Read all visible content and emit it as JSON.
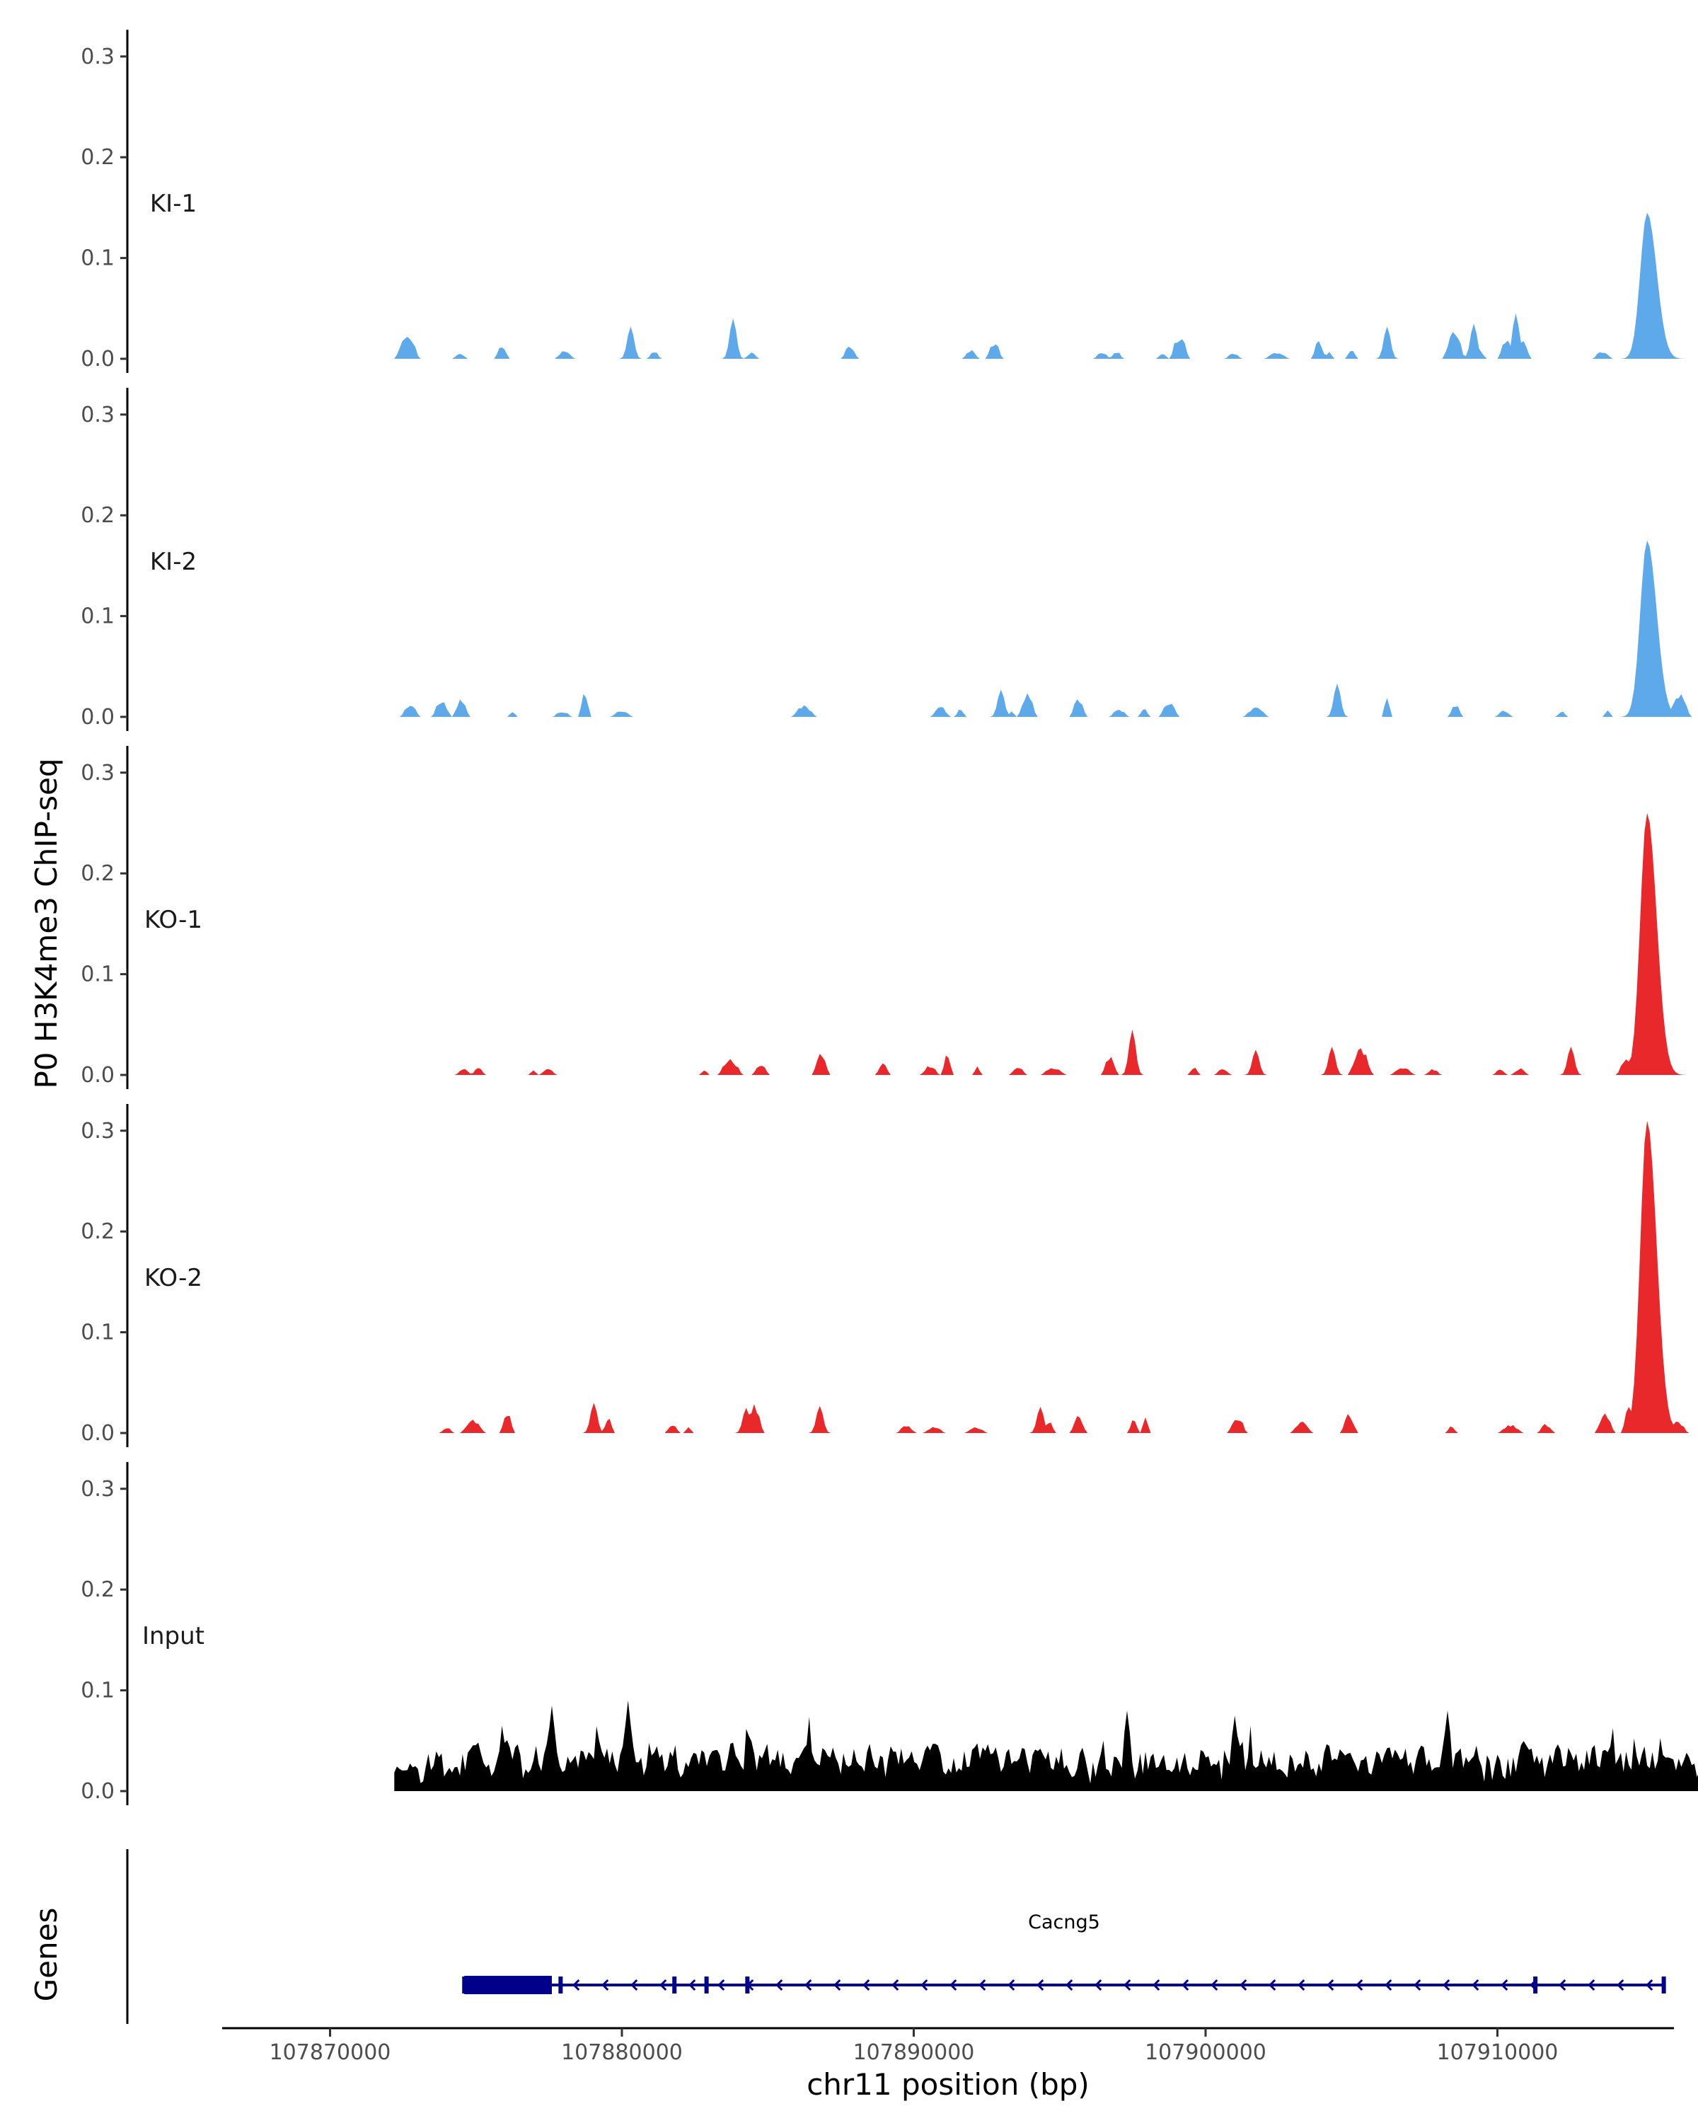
{
  "chart_data": {
    "type": "area",
    "title": "",
    "ylabel": "P0 H3K4me3 ChIP-seq",
    "xlabel": "chr11 position (bp)",
    "xlim": [
      107866400,
      107916000
    ],
    "x_ticks": [
      107870000,
      107880000,
      107890000,
      107900000,
      107910000
    ],
    "x_tick_labels": [
      "107870000",
      "107880000",
      "107890000",
      "107900000",
      "107910000"
    ],
    "ylim": [
      0,
      0.33
    ],
    "y_ticks": [
      0.0,
      0.1,
      0.2,
      0.3
    ],
    "y_tick_labels": [
      "0.0",
      "0.1",
      "0.2",
      "0.3"
    ],
    "grid": false,
    "signal_range": [
      107872200,
      107917400
    ],
    "peak_position": 107915100,
    "tracks": [
      {
        "label": "KI-1",
        "color": "#5DA9E9",
        "noise": "sparse",
        "peak_height": 0.145,
        "minor_peaks": [
          [
            107880300,
            0.032
          ],
          [
            107883800,
            0.04
          ],
          [
            107906200,
            0.032
          ],
          [
            107910600,
            0.045
          ],
          [
            107909200,
            0.035
          ]
        ]
      },
      {
        "label": "KI-2",
        "color": "#5DA9E9",
        "noise": "sparse",
        "peak_height": 0.175,
        "minor_peaks": [
          [
            107893000,
            0.027
          ],
          [
            107904500,
            0.033
          ]
        ]
      },
      {
        "label": "KO-1",
        "color": "#E8282A",
        "noise": "sparse",
        "peak_height": 0.26,
        "minor_peaks": [
          [
            107897500,
            0.045
          ],
          [
            107901700,
            0.025
          ],
          [
            107904300,
            0.028
          ],
          [
            107912500,
            0.028
          ]
        ]
      },
      {
        "label": "KO-2",
        "color": "#E8282A",
        "noise": "sparse",
        "peak_height": 0.31,
        "minor_peaks": [
          [
            107879000,
            0.03
          ],
          [
            107884300,
            0.025
          ],
          [
            107886800,
            0.027
          ],
          [
            107894300,
            0.026
          ]
        ]
      },
      {
        "label": "Input",
        "color": "#000000",
        "noise": "dense",
        "peak_height": 0.0,
        "minor_peaks": [
          [
            107877600,
            0.085
          ],
          [
            107880200,
            0.09
          ],
          [
            107897300,
            0.08
          ],
          [
            107901000,
            0.075
          ],
          [
            107908300,
            0.08
          ]
        ]
      }
    ],
    "genes_track": {
      "label": "Genes",
      "gene": {
        "name": "Cacng5",
        "start": 107874600,
        "end": 107915700,
        "strand": "-",
        "color": "#00008B",
        "thick_start": 107874600,
        "thick_end": 107877600,
        "exons": [
          107874600,
          107877900,
          107881800,
          107882900,
          107884300,
          107911300,
          107915700
        ]
      }
    }
  }
}
